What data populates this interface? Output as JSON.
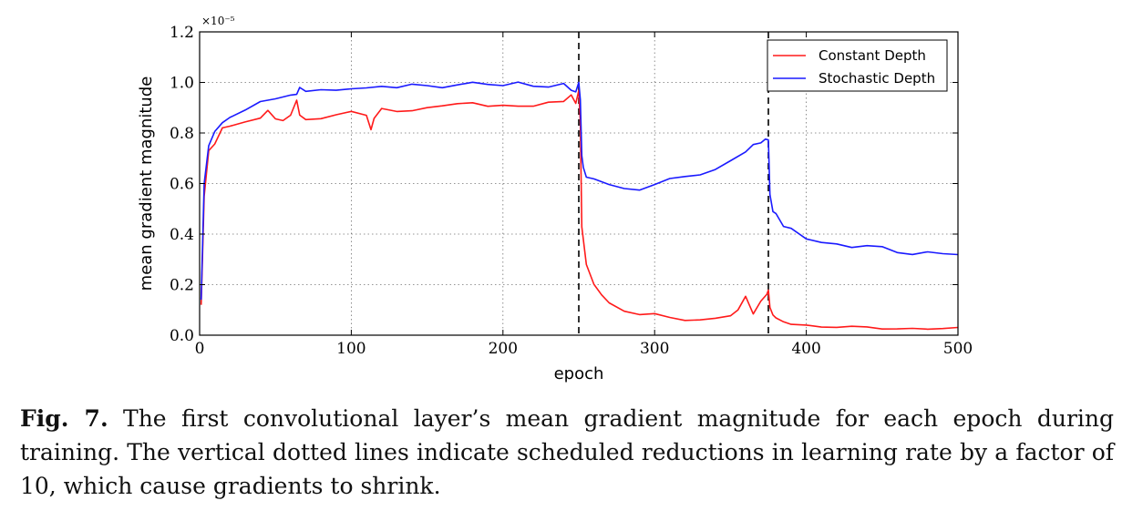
{
  "chart_data": {
    "type": "line",
    "title": "",
    "xlabel": "epoch",
    "ylabel": "mean gradient magnitude",
    "y_scale_label": "×10⁻⁵",
    "xlim": [
      0,
      500
    ],
    "ylim": [
      0.0,
      1.2
    ],
    "x_ticks": [
      "0",
      "100",
      "200",
      "300",
      "400",
      "500"
    ],
    "y_ticks": [
      "0.0",
      "0.2",
      "0.4",
      "0.6",
      "0.8",
      "1.0",
      "1.2"
    ],
    "grid": true,
    "legend_position": "top-right",
    "vlines": [
      250,
      375
    ],
    "series": [
      {
        "name": "Constant Depth",
        "color": "#ff1a1a",
        "x": [
          1,
          3,
          6,
          10,
          15,
          20,
          30,
          40,
          45,
          50,
          55,
          60,
          64,
          66,
          70,
          80,
          90,
          100,
          110,
          113,
          115,
          120,
          130,
          140,
          150,
          160,
          170,
          180,
          190,
          200,
          210,
          220,
          230,
          240,
          245,
          248,
          250,
          251,
          252,
          255,
          260,
          265,
          270,
          280,
          290,
          300,
          310,
          320,
          330,
          340,
          350,
          355,
          360,
          365,
          370,
          374,
          375,
          376,
          378,
          380,
          385,
          390,
          400,
          410,
          420,
          430,
          440,
          450,
          460,
          470,
          480,
          490,
          500
        ],
        "y": [
          0.12,
          0.55,
          0.73,
          0.77,
          0.81,
          0.83,
          0.84,
          0.86,
          0.89,
          0.85,
          0.86,
          0.86,
          0.93,
          0.87,
          0.86,
          0.87,
          0.87,
          0.88,
          0.87,
          0.81,
          0.86,
          0.89,
          0.88,
          0.9,
          0.91,
          0.9,
          0.91,
          0.92,
          0.9,
          0.91,
          0.92,
          0.91,
          0.91,
          0.92,
          0.95,
          0.92,
          0.97,
          0.85,
          0.42,
          0.28,
          0.2,
          0.16,
          0.13,
          0.1,
          0.08,
          0.08,
          0.07,
          0.06,
          0.06,
          0.07,
          0.08,
          0.1,
          0.15,
          0.09,
          0.13,
          0.16,
          0.18,
          0.11,
          0.08,
          0.07,
          0.05,
          0.045,
          0.04,
          0.035,
          0.032,
          0.03,
          0.03,
          0.028,
          0.027,
          0.027,
          0.026,
          0.025,
          0.025
        ]
      },
      {
        "name": "Stochastic Depth",
        "color": "#1a1aff",
        "x": [
          1,
          3,
          6,
          10,
          15,
          20,
          30,
          40,
          50,
          60,
          64,
          66,
          70,
          80,
          90,
          100,
          110,
          120,
          130,
          140,
          150,
          160,
          170,
          180,
          190,
          200,
          210,
          220,
          230,
          240,
          245,
          248,
          250,
          251,
          252,
          253,
          255,
          260,
          270,
          280,
          290,
          300,
          310,
          320,
          330,
          340,
          350,
          360,
          365,
          370,
          373,
          375,
          376,
          378,
          380,
          385,
          390,
          400,
          410,
          420,
          430,
          440,
          450,
          460,
          470,
          480,
          490,
          500
        ],
        "y": [
          0.14,
          0.6,
          0.75,
          0.8,
          0.84,
          0.87,
          0.9,
          0.92,
          0.93,
          0.95,
          0.96,
          0.97,
          0.96,
          0.97,
          0.98,
          0.98,
          0.97,
          0.98,
          0.98,
          0.99,
          0.99,
          0.99,
          0.99,
          0.99,
          0.99,
          0.99,
          1.0,
          0.99,
          0.99,
          0.99,
          0.98,
          0.97,
          0.99,
          0.93,
          0.72,
          0.66,
          0.63,
          0.62,
          0.6,
          0.58,
          0.58,
          0.6,
          0.61,
          0.62,
          0.64,
          0.66,
          0.69,
          0.73,
          0.75,
          0.76,
          0.77,
          0.78,
          0.55,
          0.5,
          0.47,
          0.44,
          0.42,
          0.39,
          0.37,
          0.36,
          0.35,
          0.35,
          0.34,
          0.33,
          0.33,
          0.33,
          0.32,
          0.32
        ]
      }
    ]
  },
  "caption": {
    "label": "Fig. 7.",
    "text": " The first convolutional layer’s mean gradient magnitude for each epoch during training. The vertical dotted lines indicate scheduled reductions in learning rate by a factor of 10, which cause gradients to shrink."
  }
}
